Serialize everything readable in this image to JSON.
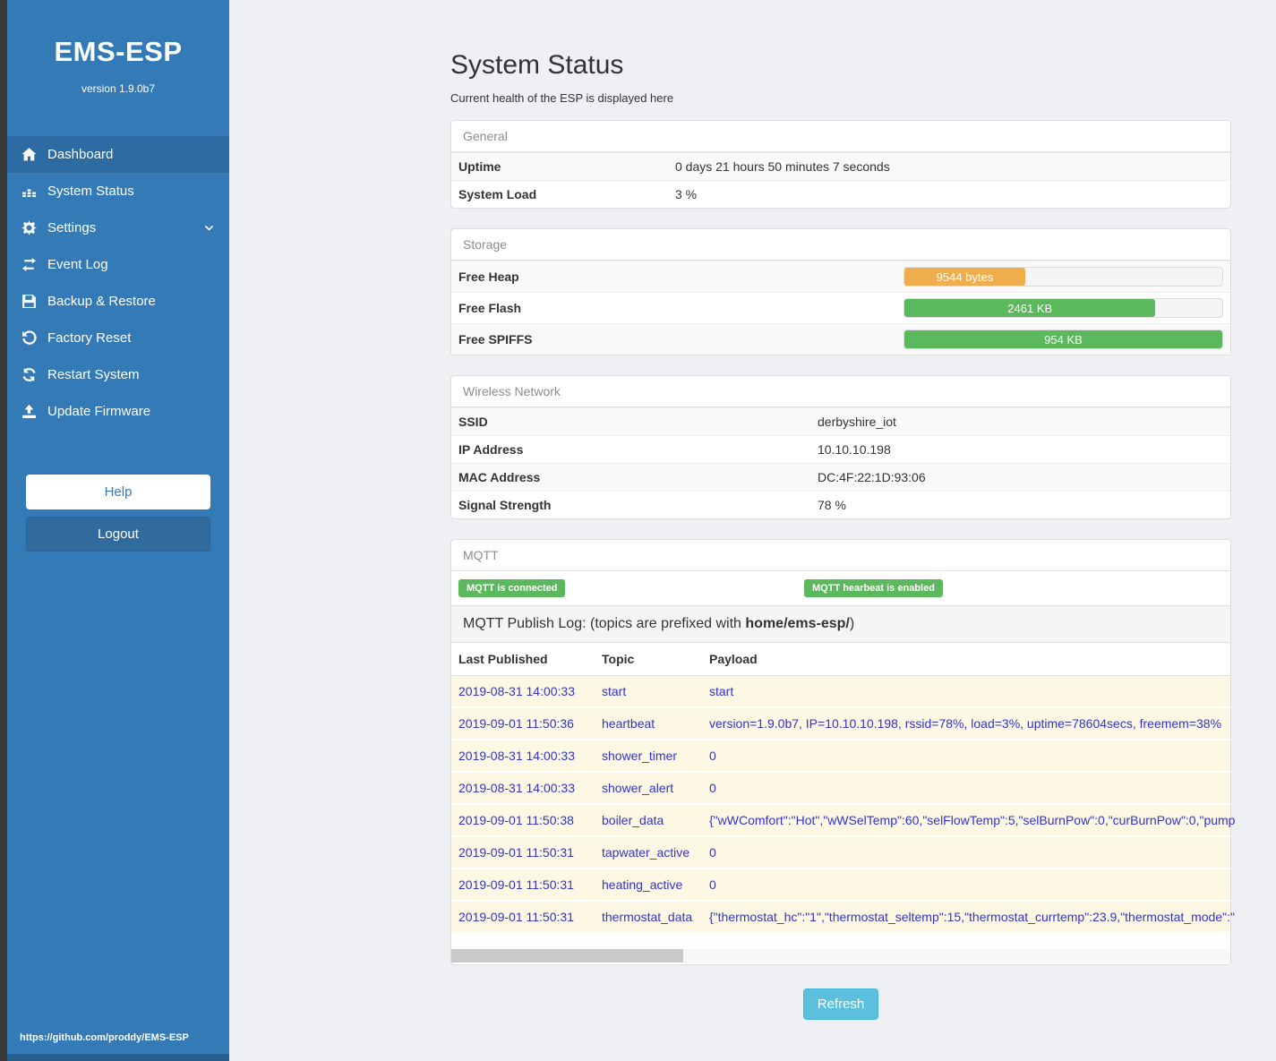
{
  "sidebar": {
    "title": "EMS-ESP",
    "version": "version 1.9.0b7",
    "nav": [
      {
        "label": "Dashboard",
        "icon": "home-icon",
        "active": true
      },
      {
        "label": "System Status",
        "icon": "system-status-icon",
        "active": false
      },
      {
        "label": "Settings",
        "icon": "gear-icon",
        "active": false,
        "chevron": "chevron-down-icon"
      },
      {
        "label": "Event Log",
        "icon": "exchange-icon",
        "active": false
      },
      {
        "label": "Backup & Restore",
        "icon": "save-icon",
        "active": false
      },
      {
        "label": "Factory Reset",
        "icon": "undo-icon",
        "active": false
      },
      {
        "label": "Restart System",
        "icon": "refresh-icon",
        "active": false
      },
      {
        "label": "Update Firmware",
        "icon": "upload-icon",
        "active": false
      }
    ],
    "help_label": "Help",
    "logout_label": "Logout",
    "footer_link": "https://github.com/proddy/EMS-ESP"
  },
  "page": {
    "title": "System Status",
    "subtitle": "Current health of the ESP is displayed here"
  },
  "general": {
    "header": "General",
    "rows": [
      {
        "label": "Uptime",
        "value": "0 days 21 hours 50 minutes 7 seconds"
      },
      {
        "label": "System Load",
        "value": "3 %"
      }
    ]
  },
  "storage": {
    "header": "Storage",
    "rows": [
      {
        "label": "Free Heap",
        "value": "9544 bytes",
        "percent": 38,
        "color": "#f0ad4e"
      },
      {
        "label": "Free Flash",
        "value": "2461 KB",
        "percent": 79,
        "color": "#5cb85c"
      },
      {
        "label": "Free SPIFFS",
        "value": "954 KB",
        "percent": 100,
        "color": "#5cb85c"
      }
    ]
  },
  "wireless": {
    "header": "Wireless Network",
    "rows": [
      {
        "label": "SSID",
        "value": "derbyshire_iot"
      },
      {
        "label": "IP Address",
        "value": "10.10.10.198"
      },
      {
        "label": "MAC Address",
        "value": "DC:4F:22:1D:93:06"
      },
      {
        "label": "Signal Strength",
        "value": "78 %"
      }
    ]
  },
  "mqtt": {
    "header": "MQTT",
    "badges": [
      "MQTT is connected",
      "MQTT hearbeat is enabled"
    ],
    "banner_prefix": "MQTT Publish Log: (topics are prefixed with ",
    "banner_bold": "home/ems-esp/",
    "banner_suffix": ")",
    "columns": [
      "Last Published",
      "Topic",
      "Payload"
    ],
    "rows": [
      [
        "2019-08-31 14:00:33",
        "start",
        "start"
      ],
      [
        "2019-09-01 11:50:36",
        "heartbeat",
        "version=1.9.0b7, IP=10.10.10.198, rssid=78%, load=3%, uptime=78604secs, freemem=38%"
      ],
      [
        "2019-08-31 14:00:33",
        "shower_timer",
        "0"
      ],
      [
        "2019-08-31 14:00:33",
        "shower_alert",
        "0"
      ],
      [
        "2019-09-01 11:50:38",
        "boiler_data",
        "{\"wWComfort\":\"Hot\",\"wWSelTemp\":60,\"selFlowTemp\":5,\"selBurnPow\":0,\"curBurnPow\":0,\"pump"
      ],
      [
        "2019-09-01 11:50:31",
        "tapwater_active",
        "0"
      ],
      [
        "2019-09-01 11:50:31",
        "heating_active",
        "0"
      ],
      [
        "2019-09-01 11:50:31",
        "thermostat_data",
        "{\"thermostat_hc\":\"1\",\"thermostat_seltemp\":15,\"thermostat_currtemp\":23.9,\"thermostat_mode\":\""
      ]
    ]
  },
  "refresh_label": "Refresh",
  "colors": {
    "sidebar_blue": "#337ab7",
    "active_item_blue": "#2d6ca3",
    "badge_green": "#5cb85c",
    "bar_orange": "#f0ad4e",
    "bar_green": "#5cb85c",
    "log_row_bg": "#fcf8e3",
    "log_text_blue": "#3333cc",
    "refresh_blue": "#5bc0de"
  }
}
